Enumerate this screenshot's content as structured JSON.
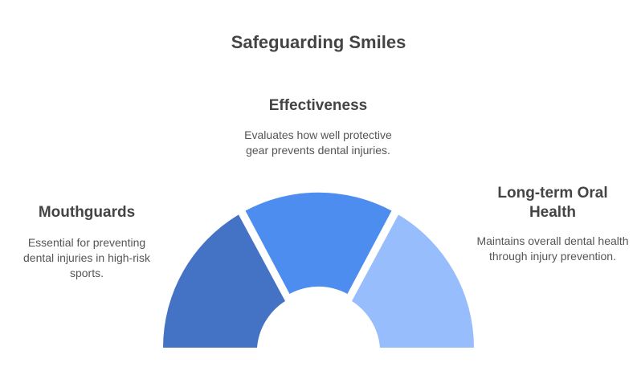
{
  "title": "Safeguarding Smiles",
  "segments": [
    {
      "id": "mouthguards",
      "heading": "Mouthguards",
      "description": "Essential for preventing dental injuries in high-risk sports.",
      "color": "#4472c4"
    },
    {
      "id": "effectiveness",
      "heading": "Effectiveness",
      "description": "Evaluates how well protective gear prevents dental injuries.",
      "color": "#4e8df0"
    },
    {
      "id": "oral-health",
      "heading": "Long-term Oral Health",
      "description": "Maintains overall dental health through injury prevention.",
      "color": "#98bdfd"
    }
  ]
}
